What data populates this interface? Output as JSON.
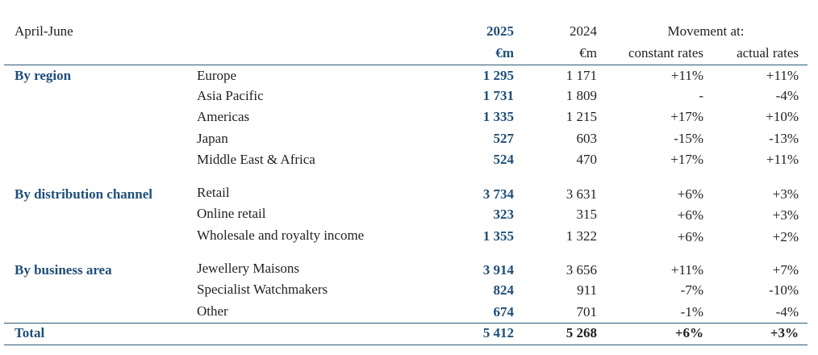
{
  "header": {
    "period": "April-June",
    "year_current": "2025",
    "year_prior": "2024",
    "unit_current": "€m",
    "unit_prior": "€m",
    "movement_title": "Movement at:",
    "constant_rates": "constant rates",
    "actual_rates": "actual rates"
  },
  "sections": [
    {
      "label": "By region",
      "rows": [
        {
          "item": "Europe",
          "v2025": "1 295",
          "v2024": "1 171",
          "constant": "+11%",
          "actual": "+11%"
        },
        {
          "item": "Asia Pacific",
          "v2025": "1 731",
          "v2024": "1 809",
          "constant": "-",
          "actual": "-4%"
        },
        {
          "item": "Americas",
          "v2025": "1 335",
          "v2024": "1 215",
          "constant": "+17%",
          "actual": "+10%"
        },
        {
          "item": "Japan",
          "v2025": "527",
          "v2024": "603",
          "constant": "-15%",
          "actual": "-13%"
        },
        {
          "item": "Middle East & Africa",
          "v2025": "524",
          "v2024": "470",
          "constant": "+17%",
          "actual": "+11%"
        }
      ]
    },
    {
      "label": "By distribution channel",
      "rows": [
        {
          "item": "Retail",
          "v2025": "3 734",
          "v2024": "3 631",
          "constant": "+6%",
          "actual": "+3%"
        },
        {
          "item": "Online retail",
          "v2025": "323",
          "v2024": "315",
          "constant": "+6%",
          "actual": "+3%"
        },
        {
          "item": "Wholesale and royalty income",
          "v2025": "1 355",
          "v2024": "1 322",
          "constant": "+6%",
          "actual": "+2%"
        }
      ]
    },
    {
      "label": "By business area",
      "rows": [
        {
          "item": "Jewellery Maisons",
          "v2025": "3 914",
          "v2024": "3 656",
          "constant": "+11%",
          "actual": "+7%"
        },
        {
          "item": "Specialist Watchmakers",
          "v2025": "824",
          "v2024": "911",
          "constant": "-7%",
          "actual": "-10%"
        },
        {
          "item": "Other",
          "v2025": "674",
          "v2024": "701",
          "constant": "-1%",
          "actual": "-4%"
        }
      ]
    }
  ],
  "total": {
    "label": "Total",
    "v2025": "5 412",
    "v2024": "5 268",
    "constant": "+6%",
    "actual": "+3%"
  },
  "colors": {
    "accent": "#1f4e79",
    "rule": "#2e5a78",
    "text": "#222222"
  }
}
